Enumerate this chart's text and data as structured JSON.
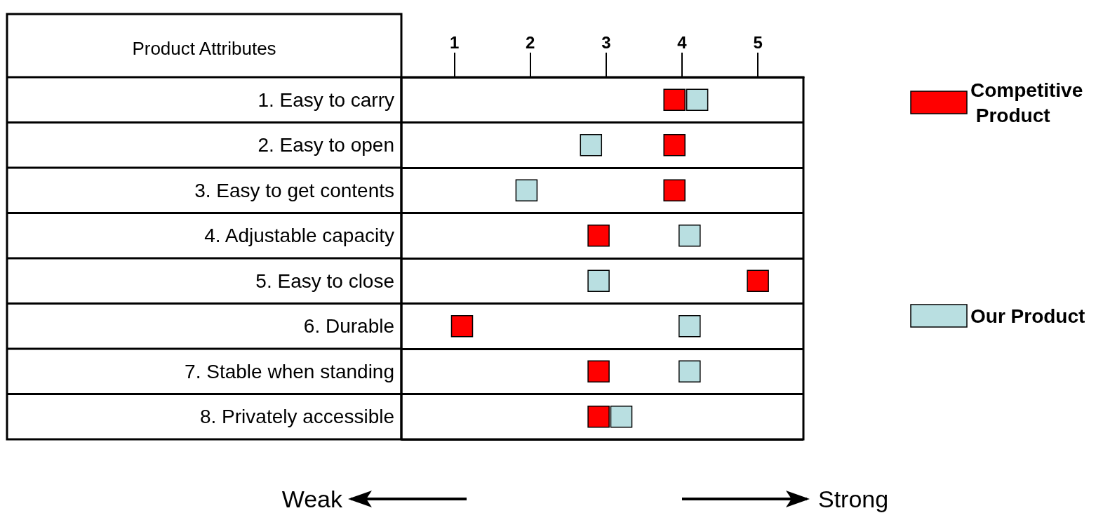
{
  "chart_data": {
    "type": "scatter",
    "ylabel": "Product Attributes",
    "categories": [
      "1. Easy to carry",
      "2. Easy to open",
      "3. Easy to get contents",
      "4. Adjustable capacity",
      "5. Easy to close",
      "6. Durable",
      "7. Stable when standing",
      "8. Privately accessible"
    ],
    "series": [
      {
        "name": "Competitive Product",
        "color": "#ff0000",
        "values": [
          3.9,
          3.9,
          3.9,
          2.9,
          5,
          1.1,
          2.9,
          2.9
        ]
      },
      {
        "name": "Our Product",
        "color": "#b9dfe1",
        "values": [
          4.2,
          2.8,
          1.95,
          4.1,
          2.9,
          4.1,
          4.1,
          3.2
        ]
      }
    ],
    "orientation": "horizontal",
    "xlim": [
      0.3,
      5.6
    ],
    "xticks": [
      1,
      2,
      3,
      4,
      5
    ],
    "marker": "square",
    "grid": "y",
    "legend": "right",
    "annotations": [
      "Weak",
      "Strong"
    ]
  }
}
